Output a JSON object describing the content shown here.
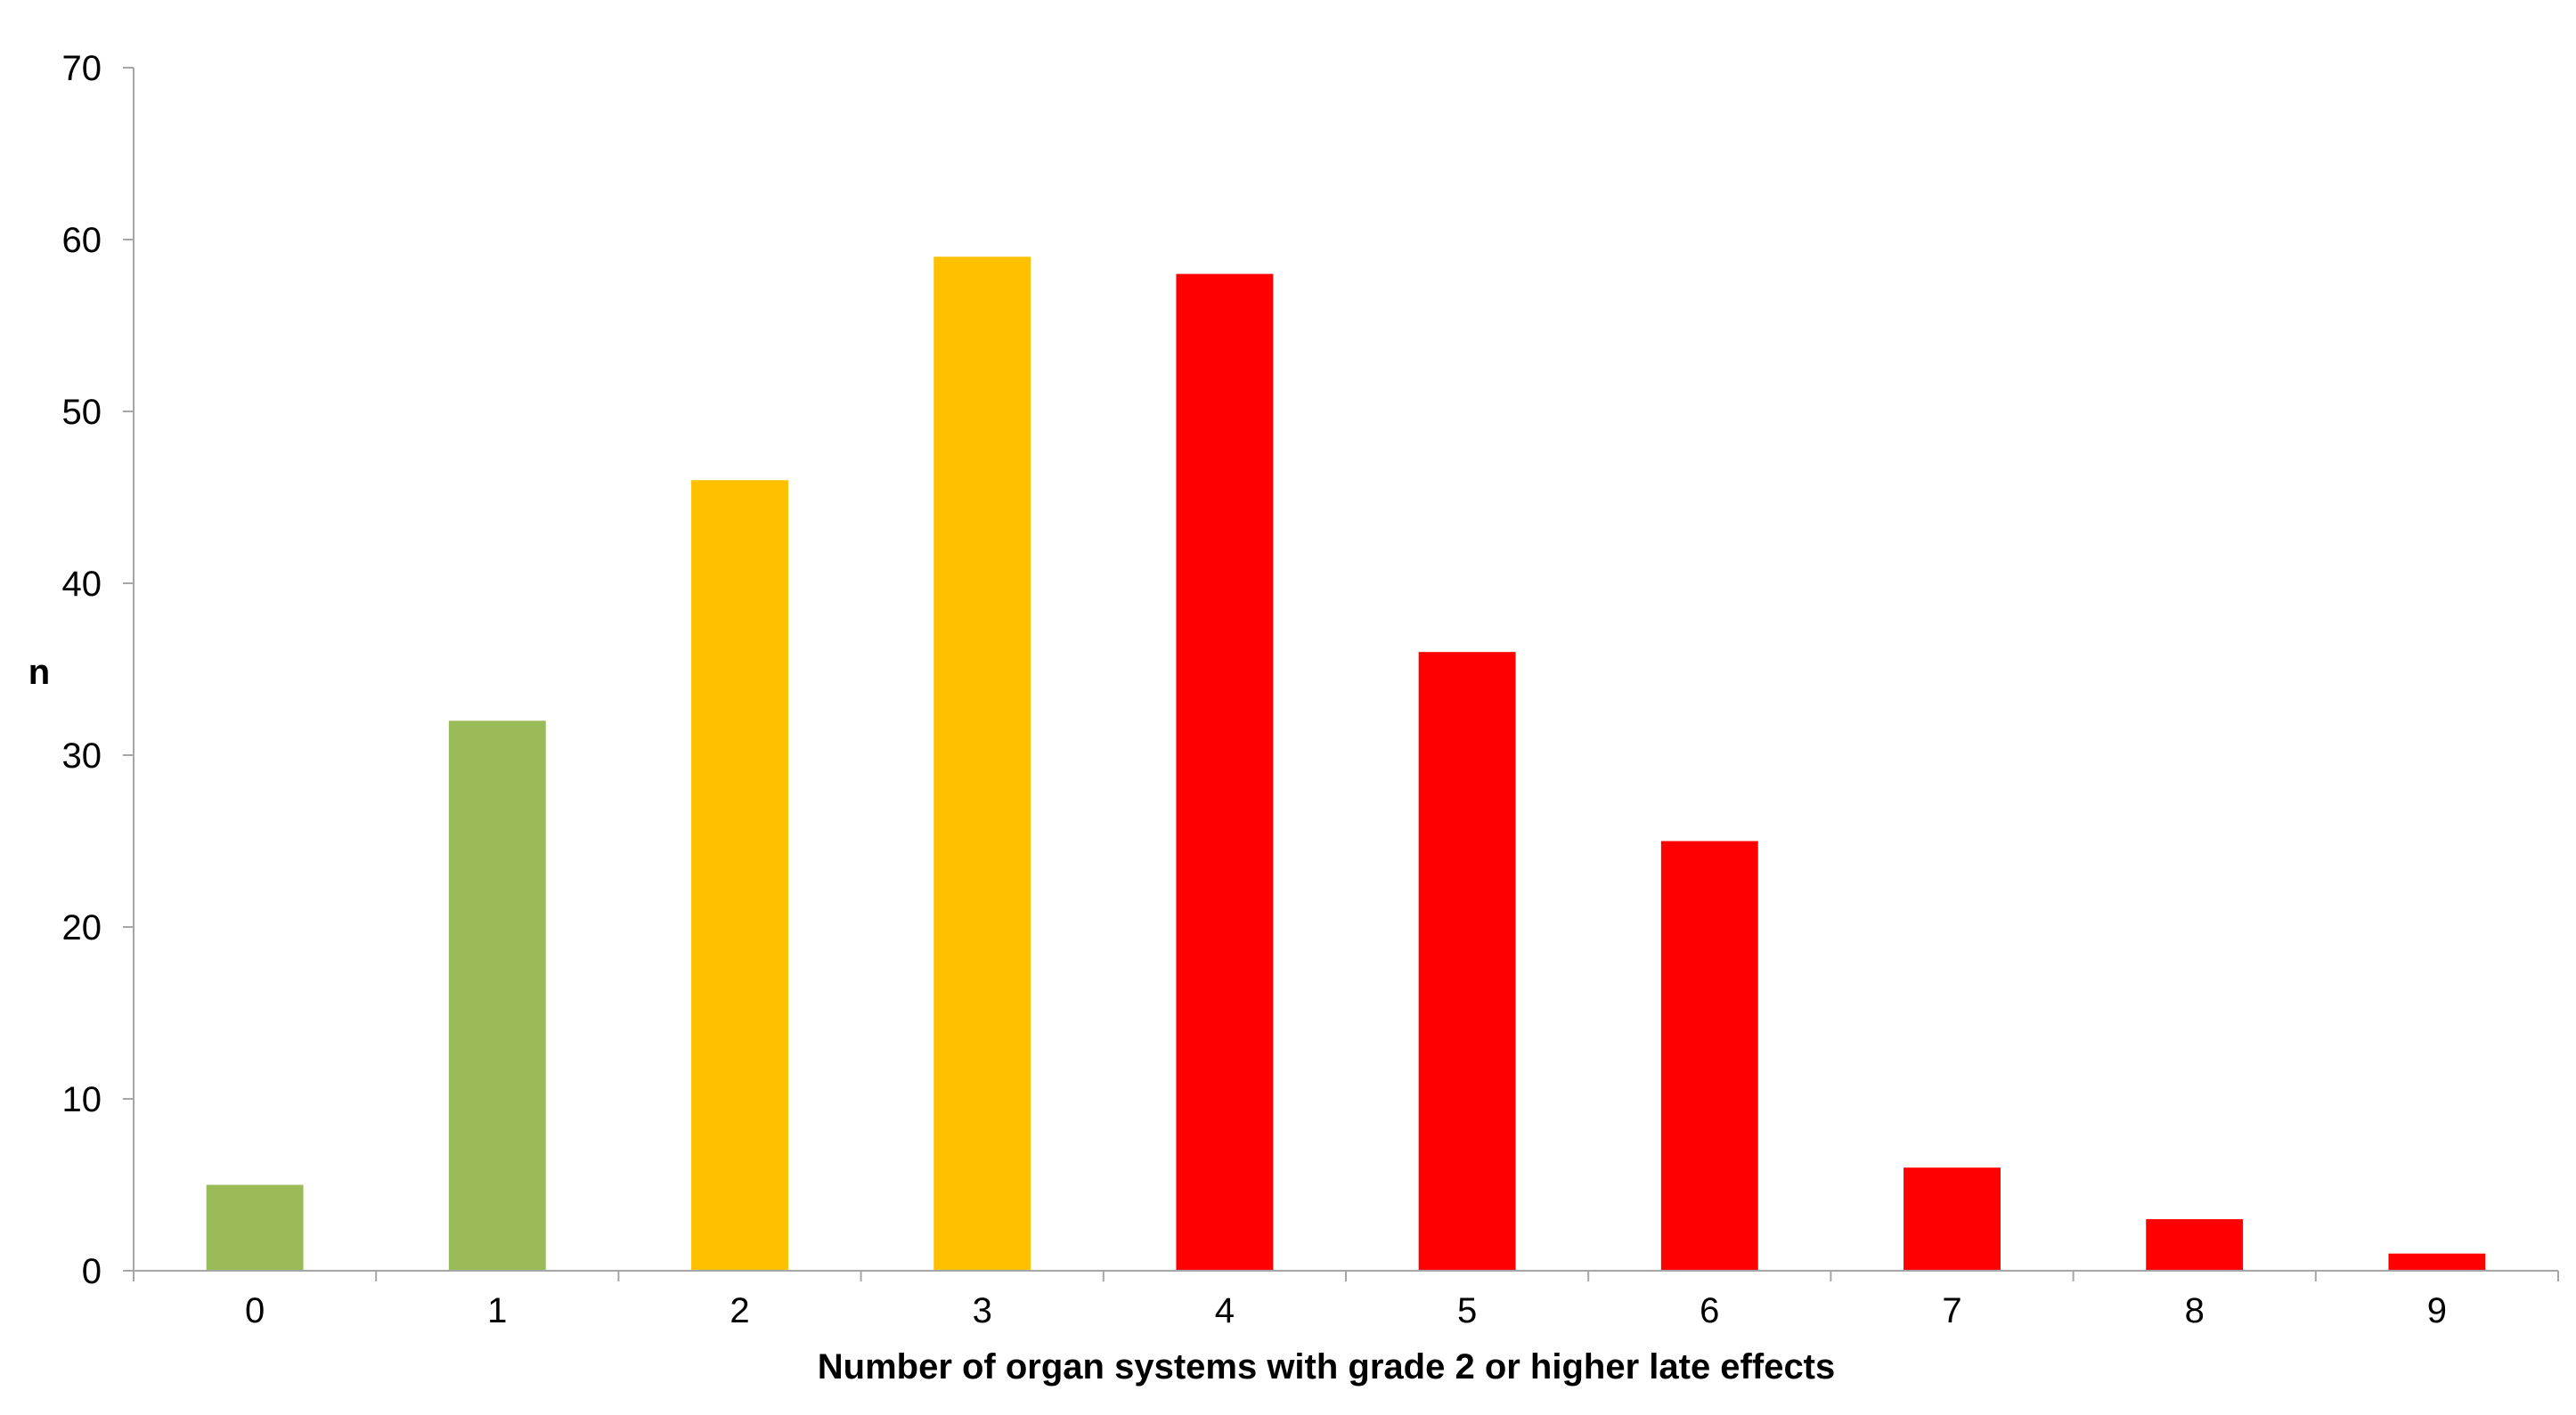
{
  "chart_data": {
    "type": "bar",
    "title": "",
    "xlabel": "Number of organ systems with grade 2 or higher late effects",
    "ylabel": "n",
    "categories": [
      "0",
      "1",
      "2",
      "3",
      "4",
      "5",
      "6",
      "7",
      "8",
      "9"
    ],
    "values": [
      5,
      32,
      46,
      59,
      58,
      36,
      25,
      6,
      3,
      1
    ],
    "bar_colors": [
      "#9bbb59",
      "#9bbb59",
      "#ffc000",
      "#ffc000",
      "#ff0000",
      "#ff0000",
      "#ff0000",
      "#ff0000",
      "#ff0000",
      "#ff0000"
    ],
    "ylim": [
      0,
      70
    ],
    "yticks": [
      0,
      10,
      20,
      30,
      40,
      50,
      60,
      70
    ],
    "grid": false,
    "legend": "none"
  }
}
